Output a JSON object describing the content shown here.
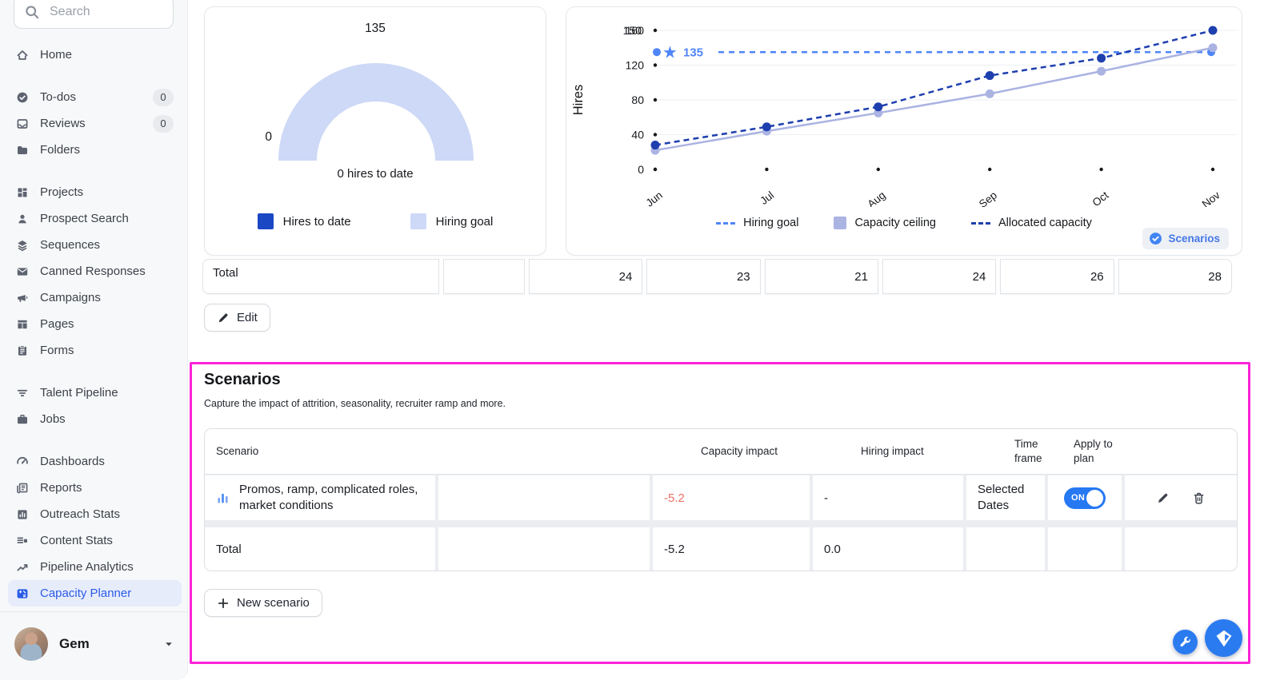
{
  "sidebar": {
    "search": {
      "placeholder": "Search",
      "icon": "search"
    },
    "sections": [
      {
        "items": [
          {
            "label": "Home",
            "icon": "home"
          }
        ]
      },
      {
        "items": [
          {
            "label": "To-dos",
            "icon": "todos",
            "badge": "0"
          },
          {
            "label": "Reviews",
            "icon": "reviews",
            "badge": "0"
          },
          {
            "label": "Folders",
            "icon": "folders"
          }
        ]
      },
      {
        "items": [
          {
            "label": "Projects",
            "icon": "projects"
          },
          {
            "label": "Prospect Search",
            "icon": "prospect-search"
          },
          {
            "label": "Sequences",
            "icon": "sequences"
          },
          {
            "label": "Canned Responses",
            "icon": "canned-responses"
          },
          {
            "label": "Campaigns",
            "icon": "campaigns"
          },
          {
            "label": "Pages",
            "icon": "pages"
          },
          {
            "label": "Forms",
            "icon": "forms"
          }
        ]
      },
      {
        "items": [
          {
            "label": "Talent Pipeline",
            "icon": "talent-pipeline"
          },
          {
            "label": "Jobs",
            "icon": "jobs"
          }
        ]
      },
      {
        "items": [
          {
            "label": "Dashboards",
            "icon": "dashboards"
          },
          {
            "label": "Reports",
            "icon": "reports"
          },
          {
            "label": "Outreach Stats",
            "icon": "outreach-stats"
          },
          {
            "label": "Content Stats",
            "icon": "content-stats"
          },
          {
            "label": "Pipeline Analytics",
            "icon": "pipeline-analytics"
          },
          {
            "label": "Capacity Planner",
            "icon": "capacity-planner",
            "active": true
          }
        ]
      }
    ],
    "profile": {
      "name": "Gem"
    }
  },
  "chart_data": [
    {
      "type": "gauge",
      "min": 0,
      "max": 135,
      "value": 0,
      "value_label": "0 hires to date",
      "series": [
        {
          "name": "Hires to date",
          "color": "#1a47c4",
          "value": 0
        },
        {
          "name": "Hiring goal",
          "color": "#cdd9f6",
          "value": 135
        }
      ]
    },
    {
      "type": "line",
      "categories": [
        "Jun",
        "Jul",
        "Aug",
        "Sep",
        "Oct",
        "Nov"
      ],
      "ylabel": "Hires",
      "ylim": [
        0,
        160
      ],
      "y_ticks": [
        0,
        40,
        80,
        120,
        160
      ],
      "y_tick_overlap": "150",
      "grid": true,
      "legend_position": "bottom",
      "goal": {
        "name": "Hiring goal",
        "value": 135,
        "label": "135",
        "color": "#4f86f7",
        "style": "dashed"
      },
      "series": [
        {
          "name": "Capacity ceiling",
          "color": "#aab3e2",
          "style": "solid",
          "values": [
            22,
            44,
            65,
            87,
            113,
            140
          ]
        },
        {
          "name": "Allocated capacity",
          "color": "#1e3fae",
          "style": "dashed",
          "values": [
            28,
            49,
            72,
            108,
            128,
            160
          ]
        }
      ]
    }
  ],
  "chart_card": {
    "scenarios_badge": "Scenarios"
  },
  "totals_row": {
    "label": "Total",
    "values": [
      "24",
      "23",
      "21",
      "24",
      "26",
      "28"
    ]
  },
  "buttons": {
    "edit": "Edit",
    "new_scenario": "New scenario"
  },
  "scenarios": {
    "title": "Scenarios",
    "subtitle": "Capture the impact of attrition, seasonality, recruiter ramp and more.",
    "table": {
      "headers": {
        "scenario": "Scenario",
        "capacity": "Capacity impact",
        "hiring": "Hiring impact",
        "time": "Time frame",
        "apply": "Apply to plan"
      },
      "rows": [
        {
          "name": "Promos, ramp, complicated roles, market conditions",
          "capacity_impact": "-5.2",
          "hiring_impact": "-",
          "time_frame": "Selected Dates",
          "toggle": "ON",
          "toggle_state": "on"
        }
      ],
      "total": {
        "label": "Total",
        "capacity_impact": "-5.2",
        "hiring_impact": "0.0"
      }
    }
  },
  "colors": {
    "accent_blue": "#2b5ce6",
    "goal_blue": "#4f86f7",
    "allocated_navy": "#1e3fae",
    "ceiling_periwinkle": "#aab3e2",
    "gauge_light": "#cdd9f6",
    "hires_dark": "#1a47c4",
    "negative_red": "#ef6e66",
    "toggle_blue": "#2678f3",
    "highlight_magenta": "#fb22d6",
    "fab_blue": "#2b7bf0"
  }
}
